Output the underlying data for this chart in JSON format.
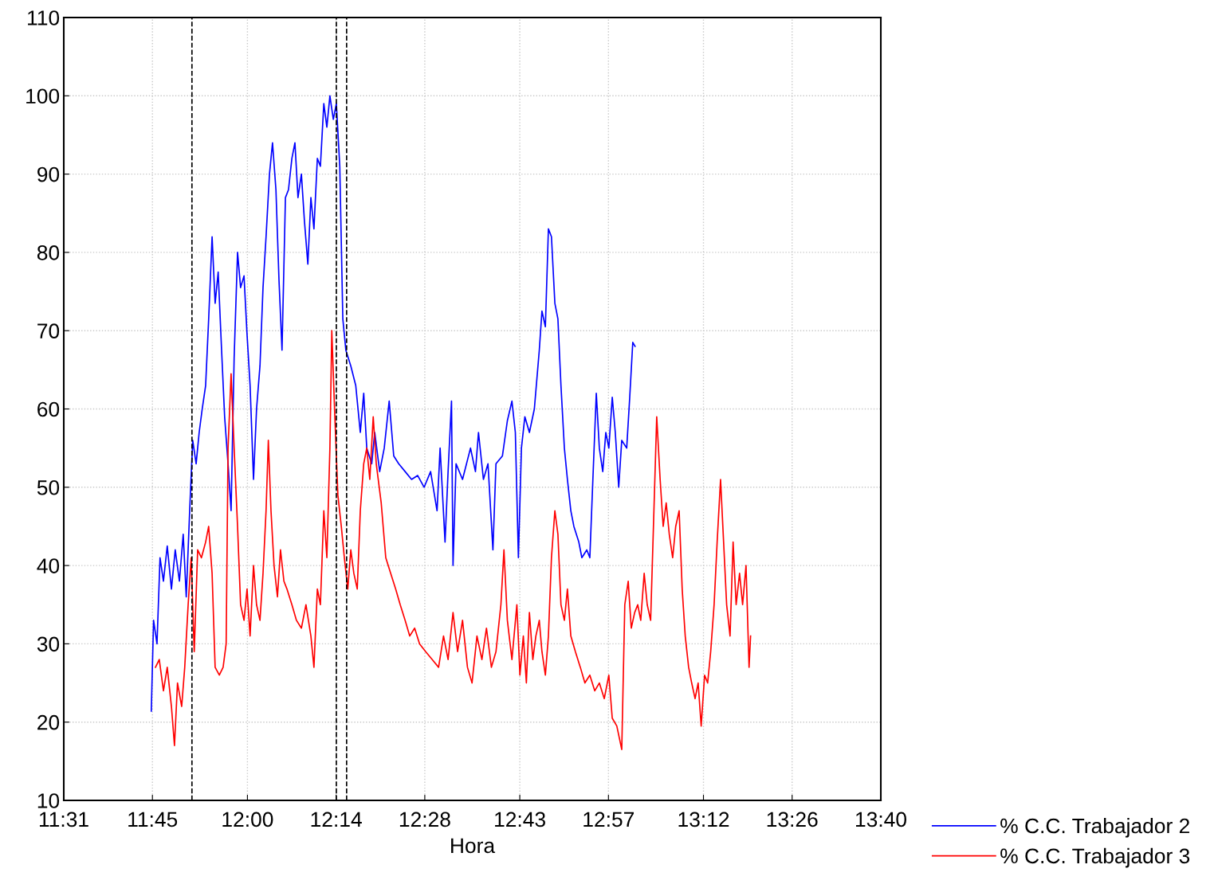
{
  "chart_data": {
    "type": "line",
    "xlabel": "Hora",
    "xlim": [
      11.5167,
      13.6667
    ],
    "ylim": [
      10,
      110
    ],
    "xticks": [
      {
        "value": 11.5167,
        "label": "11:31"
      },
      {
        "value": 11.75,
        "label": "11:45"
      },
      {
        "value": 12.0,
        "label": "12:00"
      },
      {
        "value": 12.2333,
        "label": "12:14"
      },
      {
        "value": 12.4667,
        "label": "12:28"
      },
      {
        "value": 12.7167,
        "label": "12:43"
      },
      {
        "value": 12.95,
        "label": "12:57"
      },
      {
        "value": 13.2,
        "label": "13:12"
      },
      {
        "value": 13.4333,
        "label": "13:26"
      },
      {
        "value": 13.6667,
        "label": "13:40"
      }
    ],
    "yticks": [
      10,
      20,
      30,
      40,
      50,
      60,
      70,
      80,
      90,
      100,
      110
    ],
    "grid": true,
    "legend": "bottom right",
    "line_style": "solid",
    "marker": "none",
    "ref_lines": [
      {
        "axis": "x",
        "value": 11.854,
        "color": "#000000",
        "line_style": "dashed"
      },
      {
        "axis": "x",
        "value": 12.234,
        "color": "#000000",
        "line_style": "dashed"
      },
      {
        "axis": "x",
        "value": 12.261,
        "color": "#000000",
        "line_style": "dashed"
      }
    ],
    "series": [
      {
        "name": "% C.C. Trabajador 2",
        "color": "#0000ff",
        "x": [
          11.747,
          11.753,
          11.762,
          11.77,
          11.779,
          11.789,
          11.8,
          11.81,
          11.821,
          11.831,
          11.839,
          11.848,
          11.856,
          11.865,
          11.873,
          11.881,
          11.89,
          11.898,
          11.907,
          11.915,
          11.923,
          11.932,
          11.94,
          11.949,
          11.957,
          11.965,
          11.974,
          11.982,
          11.991,
          11.999,
          12.007,
          12.016,
          12.024,
          12.033,
          12.041,
          12.049,
          12.058,
          12.066,
          12.075,
          12.083,
          12.091,
          12.1,
          12.108,
          12.117,
          12.125,
          12.133,
          12.142,
          12.15,
          12.159,
          12.167,
          12.175,
          12.184,
          12.192,
          12.201,
          12.209,
          12.217,
          12.226,
          12.234,
          12.243,
          12.251,
          12.259,
          12.272,
          12.285,
          12.297,
          12.306,
          12.314,
          12.327,
          12.335,
          12.348,
          12.36,
          12.373,
          12.385,
          12.398,
          12.415,
          12.432,
          12.448,
          12.465,
          12.482,
          12.499,
          12.507,
          12.52,
          12.528,
          12.537,
          12.541,
          12.549,
          12.566,
          12.587,
          12.6,
          12.608,
          12.621,
          12.633,
          12.646,
          12.654,
          12.671,
          12.684,
          12.696,
          12.705,
          12.713,
          12.721,
          12.73,
          12.742,
          12.755,
          12.768,
          12.775,
          12.784,
          12.792,
          12.8,
          12.809,
          12.817,
          12.825,
          12.834,
          12.842,
          12.851,
          12.859,
          12.872,
          12.88,
          12.893,
          12.901,
          12.909,
          12.918,
          12.926,
          12.935,
          12.943,
          12.951,
          12.96,
          12.968,
          12.977,
          12.985,
          12.998,
          13.006,
          13.014,
          13.02
        ],
        "values": [
          21.4,
          33,
          30,
          41,
          38,
          42.5,
          37,
          42,
          38,
          44,
          36,
          47,
          56,
          53,
          57,
          60,
          63,
          71.5,
          82,
          73.5,
          77.5,
          67.5,
          59,
          53,
          47,
          66.5,
          80,
          75.5,
          77,
          69.5,
          63,
          51,
          60,
          65.5,
          75.5,
          82,
          90,
          94,
          88,
          76.5,
          67.5,
          87,
          88,
          92,
          94,
          87,
          90,
          84,
          78.5,
          87,
          83,
          92,
          91,
          99,
          96,
          100,
          97,
          99,
          91,
          71.5,
          67.5,
          65.5,
          63,
          57,
          62,
          55,
          53,
          57,
          52,
          55,
          61,
          54,
          53,
          52,
          51,
          51.5,
          50,
          52,
          47,
          55,
          43,
          52,
          61,
          40,
          53,
          51,
          55,
          52,
          57,
          51,
          53,
          42,
          53,
          54,
          58.5,
          61,
          57,
          41,
          55,
          59,
          57,
          60,
          67.5,
          72.5,
          70.5,
          83,
          82,
          73.5,
          71.5,
          63,
          55,
          51,
          47,
          45,
          43,
          41,
          42,
          41,
          51,
          62,
          55,
          52,
          57,
          55,
          61.5,
          57,
          50,
          56,
          55,
          61.5,
          68.5,
          68
        ]
      },
      {
        "name": "% C.C. Trabajador 3",
        "color": "#ff0000",
        "x": [
          11.758,
          11.768,
          11.779,
          11.789,
          11.8,
          11.808,
          11.816,
          11.827,
          11.835,
          11.844,
          11.852,
          11.86,
          11.869,
          11.879,
          11.89,
          11.898,
          11.907,
          11.915,
          11.926,
          11.936,
          11.944,
          11.949,
          11.957,
          11.965,
          11.974,
          11.982,
          11.991,
          11.999,
          12.007,
          12.016,
          12.024,
          12.033,
          12.041,
          12.049,
          12.055,
          12.062,
          12.07,
          12.079,
          12.087,
          12.096,
          12.104,
          12.117,
          12.129,
          12.142,
          12.154,
          12.167,
          12.175,
          12.184,
          12.192,
          12.201,
          12.209,
          12.217,
          12.222,
          12.23,
          12.238,
          12.247,
          12.255,
          12.264,
          12.272,
          12.28,
          12.289,
          12.297,
          12.306,
          12.314,
          12.322,
          12.331,
          12.339,
          12.352,
          12.364,
          12.377,
          12.39,
          12.402,
          12.415,
          12.427,
          12.44,
          12.453,
          12.469,
          12.486,
          12.503,
          12.516,
          12.528,
          12.541,
          12.553,
          12.566,
          12.579,
          12.591,
          12.604,
          12.617,
          12.629,
          12.642,
          12.654,
          12.667,
          12.675,
          12.684,
          12.696,
          12.709,
          12.717,
          12.726,
          12.734,
          12.742,
          12.751,
          12.759,
          12.768,
          12.775,
          12.784,
          12.792,
          12.8,
          12.809,
          12.817,
          12.825,
          12.834,
          12.842,
          12.851,
          12.863,
          12.876,
          12.888,
          12.901,
          12.914,
          12.926,
          12.939,
          12.951,
          12.96,
          12.972,
          12.985,
          12.993,
          13.002,
          13.01,
          13.019,
          13.027,
          13.035,
          13.044,
          13.052,
          13.061,
          13.069,
          13.077,
          13.086,
          13.094,
          13.102,
          13.11,
          13.119,
          13.127,
          13.136,
          13.144,
          13.152,
          13.161,
          13.169,
          13.178,
          13.186,
          13.194,
          13.203,
          13.211,
          13.219,
          13.228,
          13.236,
          13.245,
          13.253,
          13.261,
          13.27,
          13.278,
          13.286,
          13.295,
          13.303,
          13.312,
          13.32,
          13.324
        ],
        "values": [
          27,
          28,
          24,
          27,
          22,
          17,
          25,
          22,
          27,
          35,
          41,
          29,
          42,
          41,
          43,
          45,
          39,
          27,
          26,
          27,
          30,
          55,
          64.5,
          55,
          45,
          35,
          33,
          37,
          31,
          40,
          35,
          33,
          39,
          47,
          56,
          47,
          40,
          36,
          42,
          38,
          37,
          35,
          33,
          32,
          35,
          31,
          27,
          37,
          35,
          47,
          41,
          55,
          70,
          59,
          49,
          45,
          41,
          37,
          42,
          39,
          37,
          47,
          53,
          55,
          51,
          59,
          53,
          48,
          41,
          39,
          37,
          35,
          33,
          31,
          32,
          30,
          29,
          28,
          27,
          31,
          28,
          34,
          29,
          33,
          27,
          25,
          31,
          28,
          32,
          27,
          29,
          35,
          42,
          33,
          28,
          35,
          26,
          31,
          25,
          34,
          28,
          31,
          33,
          29,
          26,
          31,
          41,
          47,
          44,
          35,
          33,
          37,
          31,
          29,
          27,
          25,
          26,
          24,
          25,
          23,
          26,
          20.5,
          19.5,
          16.5,
          35,
          38,
          32,
          34,
          35,
          33,
          39,
          35,
          33,
          46,
          59,
          51,
          45,
          48,
          44,
          41,
          45,
          47,
          37,
          31,
          27,
          25,
          23,
          25,
          19.5,
          26,
          25,
          29,
          35,
          43,
          51,
          43,
          35,
          31,
          43,
          35,
          39,
          35,
          40,
          27,
          31
        ]
      }
    ]
  }
}
